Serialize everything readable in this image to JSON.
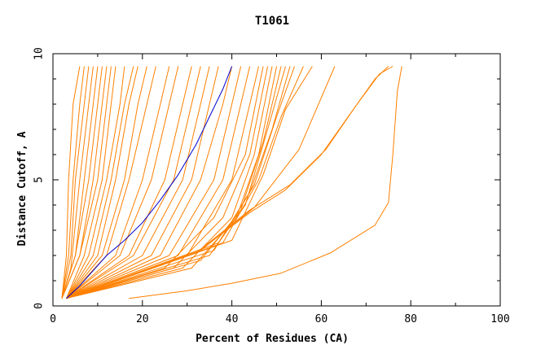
{
  "chart_data": {
    "type": "line",
    "title": "T1061",
    "xlabel": "Percent of Residues (CA)",
    "ylabel": "Distance Cutoff, A",
    "xlim": [
      0,
      100
    ],
    "ylim": [
      0,
      10
    ],
    "x_ticks": [
      0,
      20,
      40,
      60,
      80,
      100
    ],
    "y_ticks": [
      0,
      5,
      10
    ],
    "grid": false,
    "colors": {
      "highlight": "#0000cc",
      "others": "#ff8000"
    },
    "highlight": [
      [
        3,
        0.3
      ],
      [
        6,
        0.8
      ],
      [
        9,
        1.4
      ],
      [
        12,
        2.0
      ],
      [
        16,
        2.6
      ],
      [
        20,
        3.3
      ],
      [
        24,
        4.2
      ],
      [
        28,
        5.2
      ],
      [
        32,
        6.4
      ],
      [
        35,
        7.5
      ],
      [
        38,
        8.6
      ],
      [
        40,
        9.5
      ]
    ],
    "series": [
      {
        "values": [
          [
            2,
            0.3
          ],
          [
            3,
            2.0
          ],
          [
            3.5,
            5.0
          ],
          [
            4.5,
            8.0
          ],
          [
            6,
            9.5
          ]
        ]
      },
      {
        "values": [
          [
            2,
            0.3
          ],
          [
            3.5,
            2.0
          ],
          [
            4.5,
            5.0
          ],
          [
            6,
            8.0
          ],
          [
            7,
            9.5
          ]
        ]
      },
      {
        "values": [
          [
            2,
            0.3
          ],
          [
            4,
            2.0
          ],
          [
            5,
            5.0
          ],
          [
            7,
            8.0
          ],
          [
            8,
            9.5
          ]
        ]
      },
      {
        "values": [
          [
            2,
            0.3
          ],
          [
            4,
            1.5
          ],
          [
            6,
            5.0
          ],
          [
            8,
            8.0
          ],
          [
            9,
            9.5
          ]
        ]
      },
      {
        "values": [
          [
            2,
            0.3
          ],
          [
            5,
            2.0
          ],
          [
            7,
            5.0
          ],
          [
            9,
            8.0
          ],
          [
            10,
            9.5
          ]
        ]
      },
      {
        "values": [
          [
            2,
            0.3
          ],
          [
            5,
            2.0
          ],
          [
            8,
            5.0
          ],
          [
            10,
            8.0
          ],
          [
            11,
            9.5
          ]
        ]
      },
      {
        "values": [
          [
            2,
            0.3
          ],
          [
            6,
            2.0
          ],
          [
            9,
            5.0
          ],
          [
            11,
            8.0
          ],
          [
            12,
            9.5
          ]
        ]
      },
      {
        "values": [
          [
            2,
            0.3
          ],
          [
            6,
            2.0
          ],
          [
            10,
            5.0
          ],
          [
            12,
            8.0
          ],
          [
            13,
            9.5
          ]
        ]
      },
      {
        "values": [
          [
            3,
            0.3
          ],
          [
            7,
            2.0
          ],
          [
            11,
            5.0
          ],
          [
            13,
            8.0
          ],
          [
            14,
            9.5
          ]
        ]
      },
      {
        "values": [
          [
            3,
            0.3
          ],
          [
            8,
            2.0
          ],
          [
            12,
            5.0
          ],
          [
            15,
            8.0
          ],
          [
            16,
            9.5
          ]
        ]
      },
      {
        "values": [
          [
            3,
            0.3
          ],
          [
            9,
            2.0
          ],
          [
            13,
            5.0
          ],
          [
            16,
            8.0
          ],
          [
            18,
            9.5
          ]
        ]
      },
      {
        "values": [
          [
            3,
            0.3
          ],
          [
            10,
            2.0
          ],
          [
            14,
            5.0
          ],
          [
            17,
            8.0
          ],
          [
            19,
            9.5
          ]
        ]
      },
      {
        "values": [
          [
            3,
            0.3
          ],
          [
            11,
            2.0
          ],
          [
            16,
            5.0
          ],
          [
            19,
            8.0
          ],
          [
            21,
            9.5
          ]
        ]
      },
      {
        "values": [
          [
            3,
            0.3
          ],
          [
            12,
            2.0
          ],
          [
            17,
            5.0
          ],
          [
            21,
            8.0
          ],
          [
            23,
            9.5
          ]
        ]
      },
      {
        "values": [
          [
            3,
            0.3
          ],
          [
            14,
            2.0
          ],
          [
            20,
            5.0
          ],
          [
            24,
            8.0
          ],
          [
            26,
            9.5
          ]
        ]
      },
      {
        "values": [
          [
            3,
            0.3
          ],
          [
            15,
            2.0
          ],
          [
            22,
            5.0
          ],
          [
            26,
            8.0
          ],
          [
            28,
            9.5
          ]
        ]
      },
      {
        "values": [
          [
            3,
            0.3
          ],
          [
            17,
            2.0
          ],
          [
            25,
            5.0
          ],
          [
            29,
            8.0
          ],
          [
            31,
            9.5
          ]
        ]
      },
      {
        "values": [
          [
            3,
            0.3
          ],
          [
            18,
            2.0
          ],
          [
            27,
            5.0
          ],
          [
            31,
            8.0
          ],
          [
            33,
            9.5
          ]
        ]
      },
      {
        "values": [
          [
            3,
            0.3
          ],
          [
            20,
            2.0
          ],
          [
            29,
            5.0
          ],
          [
            33,
            8.0
          ],
          [
            35,
            9.5
          ]
        ]
      },
      {
        "values": [
          [
            3,
            0.3
          ],
          [
            22,
            2.0
          ],
          [
            31,
            5.0
          ],
          [
            35,
            8.0
          ],
          [
            37,
            9.5
          ]
        ]
      },
      {
        "values": [
          [
            3,
            0.3
          ],
          [
            24,
            2.0
          ],
          [
            33,
            5.0
          ],
          [
            38,
            8.0
          ],
          [
            40,
            9.5
          ]
        ]
      },
      {
        "values": [
          [
            3,
            0.3
          ],
          [
            26,
            2.0
          ],
          [
            36,
            5.0
          ],
          [
            40,
            8.0
          ],
          [
            42,
            9.5
          ]
        ]
      },
      {
        "values": [
          [
            3,
            0.3
          ],
          [
            28,
            2.0
          ],
          [
            38,
            5.0
          ],
          [
            42,
            8.0
          ],
          [
            44,
            9.5
          ]
        ]
      },
      {
        "values": [
          [
            3,
            0.3
          ],
          [
            30,
            2.0
          ],
          [
            40,
            5.0
          ],
          [
            44,
            8.0
          ],
          [
            46,
            9.5
          ]
        ]
      },
      {
        "values": [
          [
            3,
            0.3
          ],
          [
            25,
            1.5
          ],
          [
            36,
            3.5
          ],
          [
            43,
            6.0
          ],
          [
            47,
            9.5
          ]
        ]
      },
      {
        "values": [
          [
            3,
            0.3
          ],
          [
            27,
            1.5
          ],
          [
            38,
            3.5
          ],
          [
            44,
            6.0
          ],
          [
            48,
            9.5
          ]
        ]
      },
      {
        "values": [
          [
            3,
            0.3
          ],
          [
            29,
            1.5
          ],
          [
            40,
            3.5
          ],
          [
            45,
            6.0
          ],
          [
            49,
            9.5
          ]
        ]
      },
      {
        "values": [
          [
            3,
            0.3
          ],
          [
            31,
            1.5
          ],
          [
            41,
            3.5
          ],
          [
            46,
            6.0
          ],
          [
            50,
            9.5
          ]
        ]
      },
      {
        "values": [
          [
            3,
            0.3
          ],
          [
            33,
            1.8
          ],
          [
            42,
            3.8
          ],
          [
            47,
            6.5
          ],
          [
            51,
            9.5
          ]
        ]
      },
      {
        "values": [
          [
            3,
            0.3
          ],
          [
            35,
            2.0
          ],
          [
            43,
            4.0
          ],
          [
            48,
            7.0
          ],
          [
            52,
            9.5
          ]
        ]
      },
      {
        "values": [
          [
            3,
            0.3
          ],
          [
            36,
            2.2
          ],
          [
            44,
            4.5
          ],
          [
            49,
            7.0
          ],
          [
            53,
            9.5
          ]
        ]
      },
      {
        "values": [
          [
            3,
            0.3
          ],
          [
            37,
            2.5
          ],
          [
            45,
            4.8
          ],
          [
            50,
            7.5
          ],
          [
            54,
            9.5
          ]
        ]
      },
      {
        "values": [
          [
            3,
            0.3
          ],
          [
            38,
            2.5
          ],
          [
            46,
            5.0
          ],
          [
            51,
            7.5
          ],
          [
            56,
            9.5
          ]
        ]
      },
      {
        "values": [
          [
            3,
            0.3
          ],
          [
            40,
            2.6
          ],
          [
            47,
            5.2
          ],
          [
            52,
            7.8
          ],
          [
            58,
            9.5
          ]
        ]
      },
      {
        "values": [
          [
            3,
            0.3
          ],
          [
            33,
            2.2
          ],
          [
            45,
            3.9
          ],
          [
            55,
            6.2
          ],
          [
            63,
            9.5
          ]
        ]
      },
      {
        "values": [
          [
            3,
            0.3
          ],
          [
            32,
            2.1
          ],
          [
            44,
            3.7
          ],
          [
            52,
            4.6
          ],
          [
            60,
            6.0
          ],
          [
            66,
            7.5
          ],
          [
            72,
            9.0
          ],
          [
            75,
            9.5
          ]
        ]
      },
      {
        "values": [
          [
            3,
            0.3
          ],
          [
            32,
            2.1
          ],
          [
            44,
            3.8
          ],
          [
            53,
            4.8
          ],
          [
            61,
            6.2
          ],
          [
            68,
            8.0
          ],
          [
            73,
            9.2
          ],
          [
            76,
            9.5
          ]
        ]
      },
      {
        "values": [
          [
            17,
            0.3
          ],
          [
            30,
            0.6
          ],
          [
            40,
            0.9
          ],
          [
            51,
            1.3
          ],
          [
            62,
            2.1
          ],
          [
            72,
            3.2
          ],
          [
            75,
            4.1
          ],
          [
            76,
            6.0
          ],
          [
            77,
            8.5
          ],
          [
            78,
            9.5
          ]
        ]
      }
    ]
  }
}
